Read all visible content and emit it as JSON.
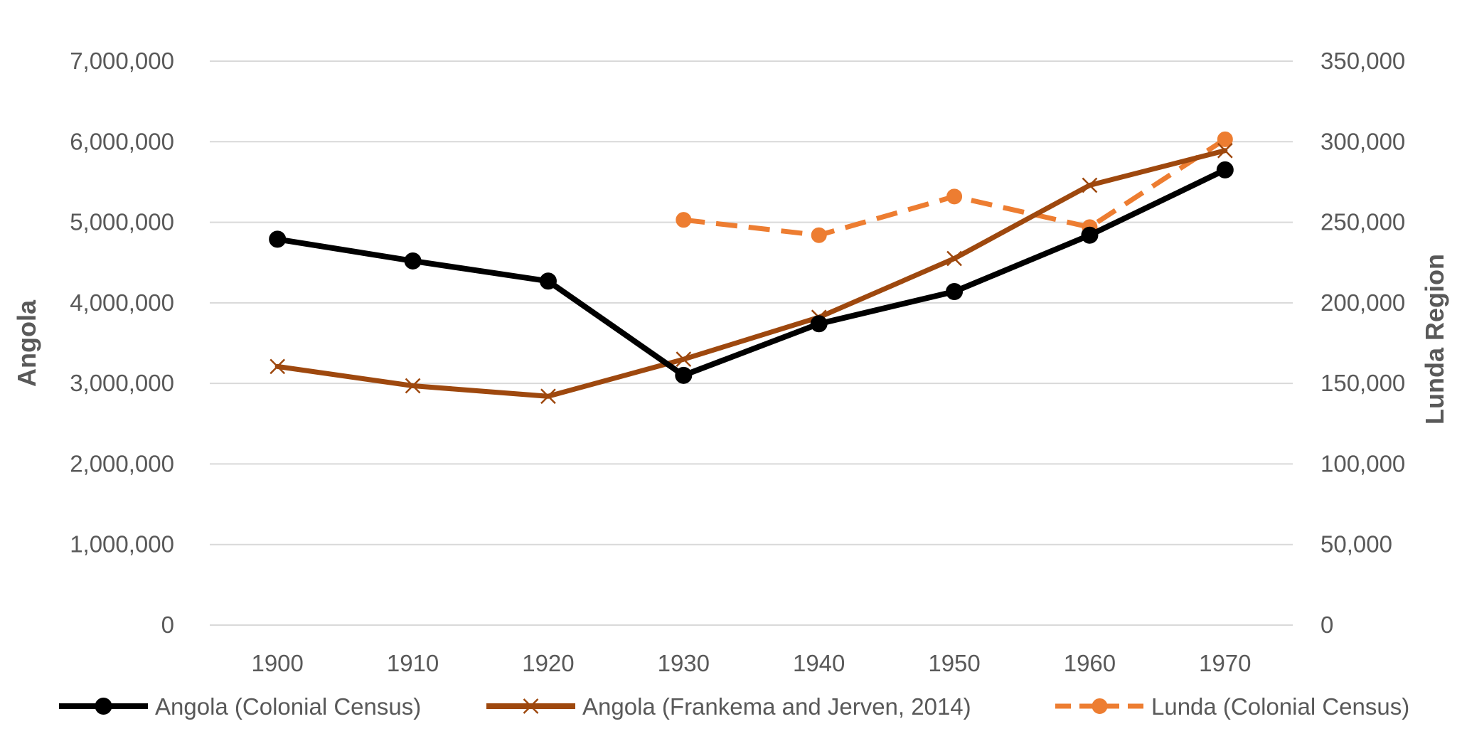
{
  "chart_data": {
    "type": "line",
    "title": "",
    "categories": [
      "1900",
      "1910",
      "1920",
      "1930",
      "1940",
      "1950",
      "1960",
      "1970"
    ],
    "left_axis": {
      "label": "Angola",
      "ylim": [
        0,
        7000000
      ],
      "ticks": [
        "0",
        "1,000,000",
        "2,000,000",
        "3,000,000",
        "4,000,000",
        "5,000,000",
        "6,000,000",
        "7,000,000"
      ]
    },
    "right_axis": {
      "label": "Lunda Region",
      "ylim": [
        0,
        350000
      ],
      "ticks": [
        "0",
        "50,000",
        "100,000",
        "150,000",
        "200,000",
        "250,000",
        "300,000",
        "350,000"
      ]
    },
    "grid": true,
    "legend_position": "bottom",
    "series": [
      {
        "name": "Angola (Colonial Census)",
        "axis": "left",
        "color": "#000000",
        "marker": "circle",
        "dash": "solid",
        "values": [
          4790000,
          4520000,
          4270000,
          3100000,
          3740000,
          4140000,
          4840000,
          5650000
        ]
      },
      {
        "name": "Angola (Frankema and Jerven, 2014)",
        "axis": "left",
        "color": "#9E480E",
        "marker": "x",
        "dash": "solid",
        "values": [
          3210000,
          2970000,
          2840000,
          3300000,
          3820000,
          4550000,
          5460000,
          5890000
        ]
      },
      {
        "name": "Lunda (Colonial Census)",
        "axis": "right",
        "color": "#ED7D31",
        "marker": "circle",
        "dash": "dashed",
        "values": [
          null,
          null,
          null,
          251500,
          242000,
          266000,
          247000,
          301500
        ]
      }
    ]
  }
}
